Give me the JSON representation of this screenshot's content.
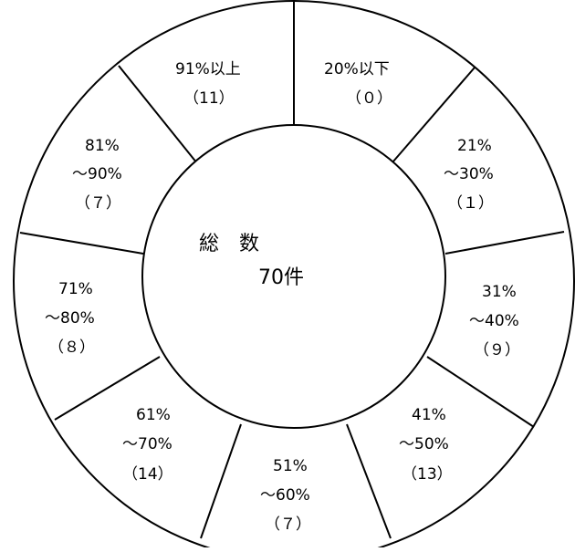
{
  "center": {
    "title": "総　数",
    "total": "70件"
  },
  "segments": [
    {
      "lines": [
        "20%以下",
        "（０）"
      ]
    },
    {
      "lines": [
        "21%",
        "～30%",
        "（１）"
      ]
    },
    {
      "lines": [
        "31%",
        "～40%",
        "（９）"
      ]
    },
    {
      "lines": [
        "41%",
        "～50%",
        "（13）"
      ]
    },
    {
      "lines": [
        "51%",
        "～60%",
        "（７）"
      ]
    },
    {
      "lines": [
        "61%",
        "～70%",
        "（14）"
      ]
    },
    {
      "lines": [
        "71%",
        "～80%",
        "（８）"
      ]
    },
    {
      "lines": [
        "81%",
        "～90%",
        "（７）"
      ]
    },
    {
      "lines": [
        "91%以上",
        "（11）"
      ]
    }
  ],
  "colors": {
    "stroke": "#000000",
    "background": "#ffffff"
  }
}
